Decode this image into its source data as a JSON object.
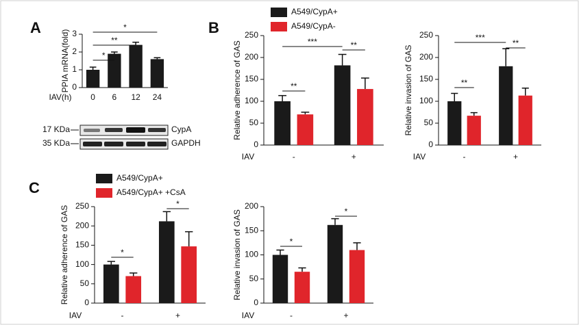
{
  "panel_labels": [
    "A",
    "B",
    "C"
  ],
  "blot": {
    "bands": [
      {
        "size": "17 KDa",
        "protein": "CypA"
      },
      {
        "size": "35 KDa",
        "protein": "GAPDH"
      }
    ]
  },
  "chart_data": [
    {
      "type": "bar",
      "y_label": "PPIA mRNA(fold)",
      "x_label": "IAV(h)",
      "categories": [
        "0",
        "6",
        "12",
        "24"
      ],
      "series": [
        {
          "color": "#1a1a1a",
          "values": [
            1.0,
            1.9,
            2.4,
            1.6
          ],
          "errors": [
            0.15,
            0.1,
            0.15,
            0.08
          ]
        }
      ],
      "ylim": [
        0,
        3
      ],
      "yticks": [
        0,
        1,
        2,
        3
      ],
      "annotations": [
        "*",
        "**",
        "*"
      ]
    },
    {
      "type": "bar",
      "y_label": "Relative adherence of GAS",
      "x_label": "IAV",
      "categories": [
        "-",
        "+"
      ],
      "series": [
        {
          "name": "A549/CypA+",
          "color": "#1a1a1a",
          "values": [
            100,
            182
          ],
          "errors": [
            13,
            25
          ]
        },
        {
          "name": "A549/CypA-",
          "color": "#e0252b",
          "values": [
            70,
            128
          ],
          "errors": [
            5,
            25
          ]
        }
      ],
      "ylim": [
        0,
        250
      ],
      "yticks": [
        0,
        50,
        100,
        150,
        200,
        250
      ],
      "annotations": [
        "**",
        "**",
        "***"
      ]
    },
    {
      "type": "bar",
      "y_label": "Relative invasion of GAS",
      "x_label": "IAV",
      "categories": [
        "-",
        "+"
      ],
      "series": [
        {
          "color": "#1a1a1a",
          "values": [
            100,
            180
          ],
          "errors": [
            18,
            40
          ]
        },
        {
          "color": "#e0252b",
          "values": [
            67,
            113
          ],
          "errors": [
            7,
            17
          ]
        }
      ],
      "ylim": [
        0,
        250
      ],
      "yticks": [
        0,
        50,
        100,
        150,
        200,
        250
      ],
      "annotations": [
        "**",
        "**",
        "***"
      ]
    },
    {
      "type": "bar",
      "y_label": "Relative adherence of GAS",
      "x_label": "IAV",
      "categories": [
        "-",
        "+"
      ],
      "series": [
        {
          "name": "A549/CypA+",
          "color": "#1a1a1a",
          "values": [
            100,
            212
          ],
          "errors": [
            8,
            25
          ]
        },
        {
          "name": "A549/CypA+ +CsA",
          "color": "#e0252b",
          "values": [
            70,
            147
          ],
          "errors": [
            8,
            38
          ]
        }
      ],
      "ylim": [
        0,
        250
      ],
      "yticks": [
        0,
        50,
        100,
        150,
        200,
        250
      ],
      "annotations": [
        "*",
        "*"
      ]
    },
    {
      "type": "bar",
      "y_label": "Relative invasion of GAS",
      "x_label": "IAV",
      "categories": [
        "-",
        "+"
      ],
      "series": [
        {
          "color": "#1a1a1a",
          "values": [
            100,
            162
          ],
          "errors": [
            10,
            13
          ]
        },
        {
          "color": "#e0252b",
          "values": [
            65,
            110
          ],
          "errors": [
            8,
            15
          ]
        }
      ],
      "ylim": [
        0,
        200
      ],
      "yticks": [
        0,
        50,
        100,
        150,
        200
      ],
      "annotations": [
        "*",
        "*"
      ]
    }
  ]
}
